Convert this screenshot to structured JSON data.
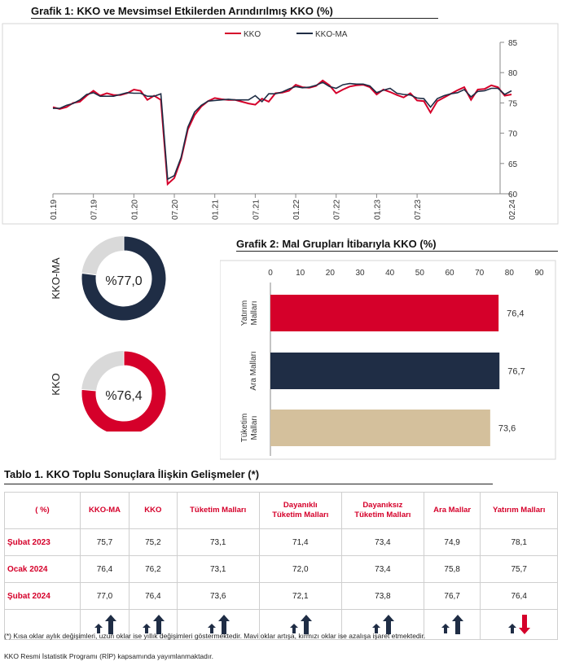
{
  "chart1": {
    "title": "Grafik 1: KKO ve Mevsimsel Etkilerden Arındırılmış KKO (%)",
    "legend": [
      "KKO",
      "KKO-MA"
    ],
    "colors": {
      "kko": "#d5002a",
      "kko_ma": "#1f2d45"
    },
    "yticks": [
      "60",
      "65",
      "70",
      "75",
      "80",
      "85"
    ],
    "xticks": [
      "01.19",
      "07.19",
      "01.20",
      "07.20",
      "01.21",
      "07.21",
      "01.22",
      "07.22",
      "01.23",
      "07.23",
      "02.24"
    ]
  },
  "donuts": [
    {
      "label": "KKO-MA",
      "center": "%77,0",
      "value": 77.0,
      "color": "#1f2d45"
    },
    {
      "label": "KKO",
      "center": "%76,4",
      "value": 76.4,
      "color": "#d5002a"
    }
  ],
  "chart2": {
    "title": "Grafik 2: Mal Grupları İtibarıyla KKO (%)",
    "xticks": [
      "0",
      "10",
      "20",
      "30",
      "40",
      "50",
      "60",
      "70",
      "80",
      "90"
    ],
    "bars": [
      {
        "label1": "Yatırım",
        "label2": "Malları",
        "value": 76.4,
        "text": "76,4",
        "color": "#d5002a"
      },
      {
        "label1": "Ara Malları",
        "label2": "",
        "value": 76.7,
        "text": "76,7",
        "color": "#1f2d45"
      },
      {
        "label1": "Tüketim",
        "label2": "Malları",
        "value": 73.6,
        "text": "73,6",
        "color": "#d4c09c"
      }
    ]
  },
  "chart_data": [
    {
      "type": "line",
      "title": "Grafik 1: KKO ve Mevsimsel Etkilerden Arındırılmış KKO (%)",
      "ylim": [
        60,
        85
      ],
      "x_start": "01.19",
      "x_end": "02.24",
      "series": [
        {
          "name": "KKO",
          "values": [
            74.3,
            74.0,
            74.3,
            75.0,
            75.2,
            76.2,
            77.0,
            76.2,
            76.6,
            76.3,
            76.3,
            76.6,
            77.2,
            77.0,
            75.5,
            76.2,
            75.5,
            61.6,
            62.6,
            65.7,
            70.6,
            73.0,
            74.4,
            75.3,
            75.8,
            75.6,
            75.5,
            75.5,
            75.2,
            74.9,
            74.7,
            75.7,
            75.2,
            76.6,
            76.7,
            77.0,
            78.0,
            77.6,
            77.5,
            77.8,
            78.7,
            77.9,
            76.6,
            77.2,
            77.7,
            77.9,
            78.0,
            77.6,
            76.4,
            77.2,
            76.8,
            76.3,
            75.9,
            76.6,
            75.4,
            75.3,
            73.4,
            75.3,
            75.9,
            76.5,
            77.1,
            77.6,
            75.5,
            77.2,
            77.3,
            77.9,
            77.6,
            76.2,
            76.4
          ]
        },
        {
          "name": "KKO-MA",
          "values": [
            74.1,
            74.1,
            74.6,
            74.9,
            75.5,
            76.4,
            76.7,
            76.1,
            76.1,
            76.1,
            76.4,
            76.7,
            76.6,
            76.6,
            76.1,
            76.1,
            76.5,
            62.4,
            63.0,
            66.0,
            71.0,
            73.5,
            74.6,
            75.3,
            75.4,
            75.5,
            75.6,
            75.5,
            75.5,
            75.5,
            76.2,
            75.2,
            76.5,
            76.5,
            76.8,
            77.3,
            77.7,
            77.5,
            77.6,
            77.9,
            78.4,
            77.7,
            77.4,
            78.0,
            78.2,
            78.1,
            78.1,
            77.8,
            76.7,
            77.1,
            77.4,
            76.6,
            76.4,
            76.3,
            75.8,
            75.7,
            74.3,
            75.7,
            76.2,
            76.5,
            76.7,
            77.2,
            76.0,
            76.9,
            77.0,
            77.4,
            77.4,
            76.4,
            77.0
          ]
        }
      ]
    },
    {
      "type": "bar",
      "title": "Grafik 2: Mal Grupları İtibarıyla KKO (%)",
      "categories": [
        "Yatırım Malları",
        "Ara Malları",
        "Tüketim Malları"
      ],
      "values": [
        76.4,
        76.7,
        73.6
      ],
      "xlim": [
        0,
        90
      ]
    },
    {
      "type": "pie",
      "categories": [
        "KKO-MA",
        "KKO"
      ],
      "values": [
        77.0,
        76.4
      ]
    }
  ],
  "table": {
    "title": "Tablo 1. KKO Toplu Sonuçlara İlişkin Gelişmeler (*)",
    "headers": [
      [
        "( %)",
        ""
      ],
      [
        "KKO-MA",
        ""
      ],
      [
        "KKO",
        ""
      ],
      [
        "Tüketim Malları",
        ""
      ],
      [
        "Dayanıklı",
        "Tüketim Malları"
      ],
      [
        "Dayanıksız",
        "Tüketim Malları"
      ],
      [
        "Ara Mallar",
        ""
      ],
      [
        "Yatırım Malları",
        ""
      ]
    ],
    "rows": [
      {
        "label": "Şubat 2023",
        "values": [
          "75,7",
          "75,2",
          "73,1",
          "71,4",
          "73,4",
          "74,9",
          "78,1"
        ]
      },
      {
        "label": "Ocak 2024",
        "values": [
          "76,4",
          "76,2",
          "73,1",
          "72,0",
          "73,4",
          "75,8",
          "75,7"
        ]
      },
      {
        "label": "Şubat 2024",
        "values": [
          "77,0",
          "76,4",
          "73,6",
          "72,1",
          "73,8",
          "76,7",
          "76,4"
        ]
      }
    ],
    "arrows": [
      {
        "monthly": "up",
        "yearly": "up"
      },
      {
        "monthly": "up",
        "yearly": "up"
      },
      {
        "monthly": "up",
        "yearly": "up"
      },
      {
        "monthly": "up",
        "yearly": "up"
      },
      {
        "monthly": "up",
        "yearly": "up"
      },
      {
        "monthly": "up",
        "yearly": "up"
      },
      {
        "monthly": "up",
        "yearly": "down"
      }
    ],
    "arrow_colors": {
      "up": "#1f2d45",
      "down": "#d5002a"
    }
  },
  "notes": {
    "note1": "(*) Kısa oklar aylık değişimleri, uzun oklar ise yıllık değişimleri göstermektedir. Mavi oklar artışa, kırmızı oklar ise azalışa işaret etmektedir.",
    "note2": "KKO Resmi İstatistik Programı (RİP) kapsamında yayımlanmaktadır."
  }
}
